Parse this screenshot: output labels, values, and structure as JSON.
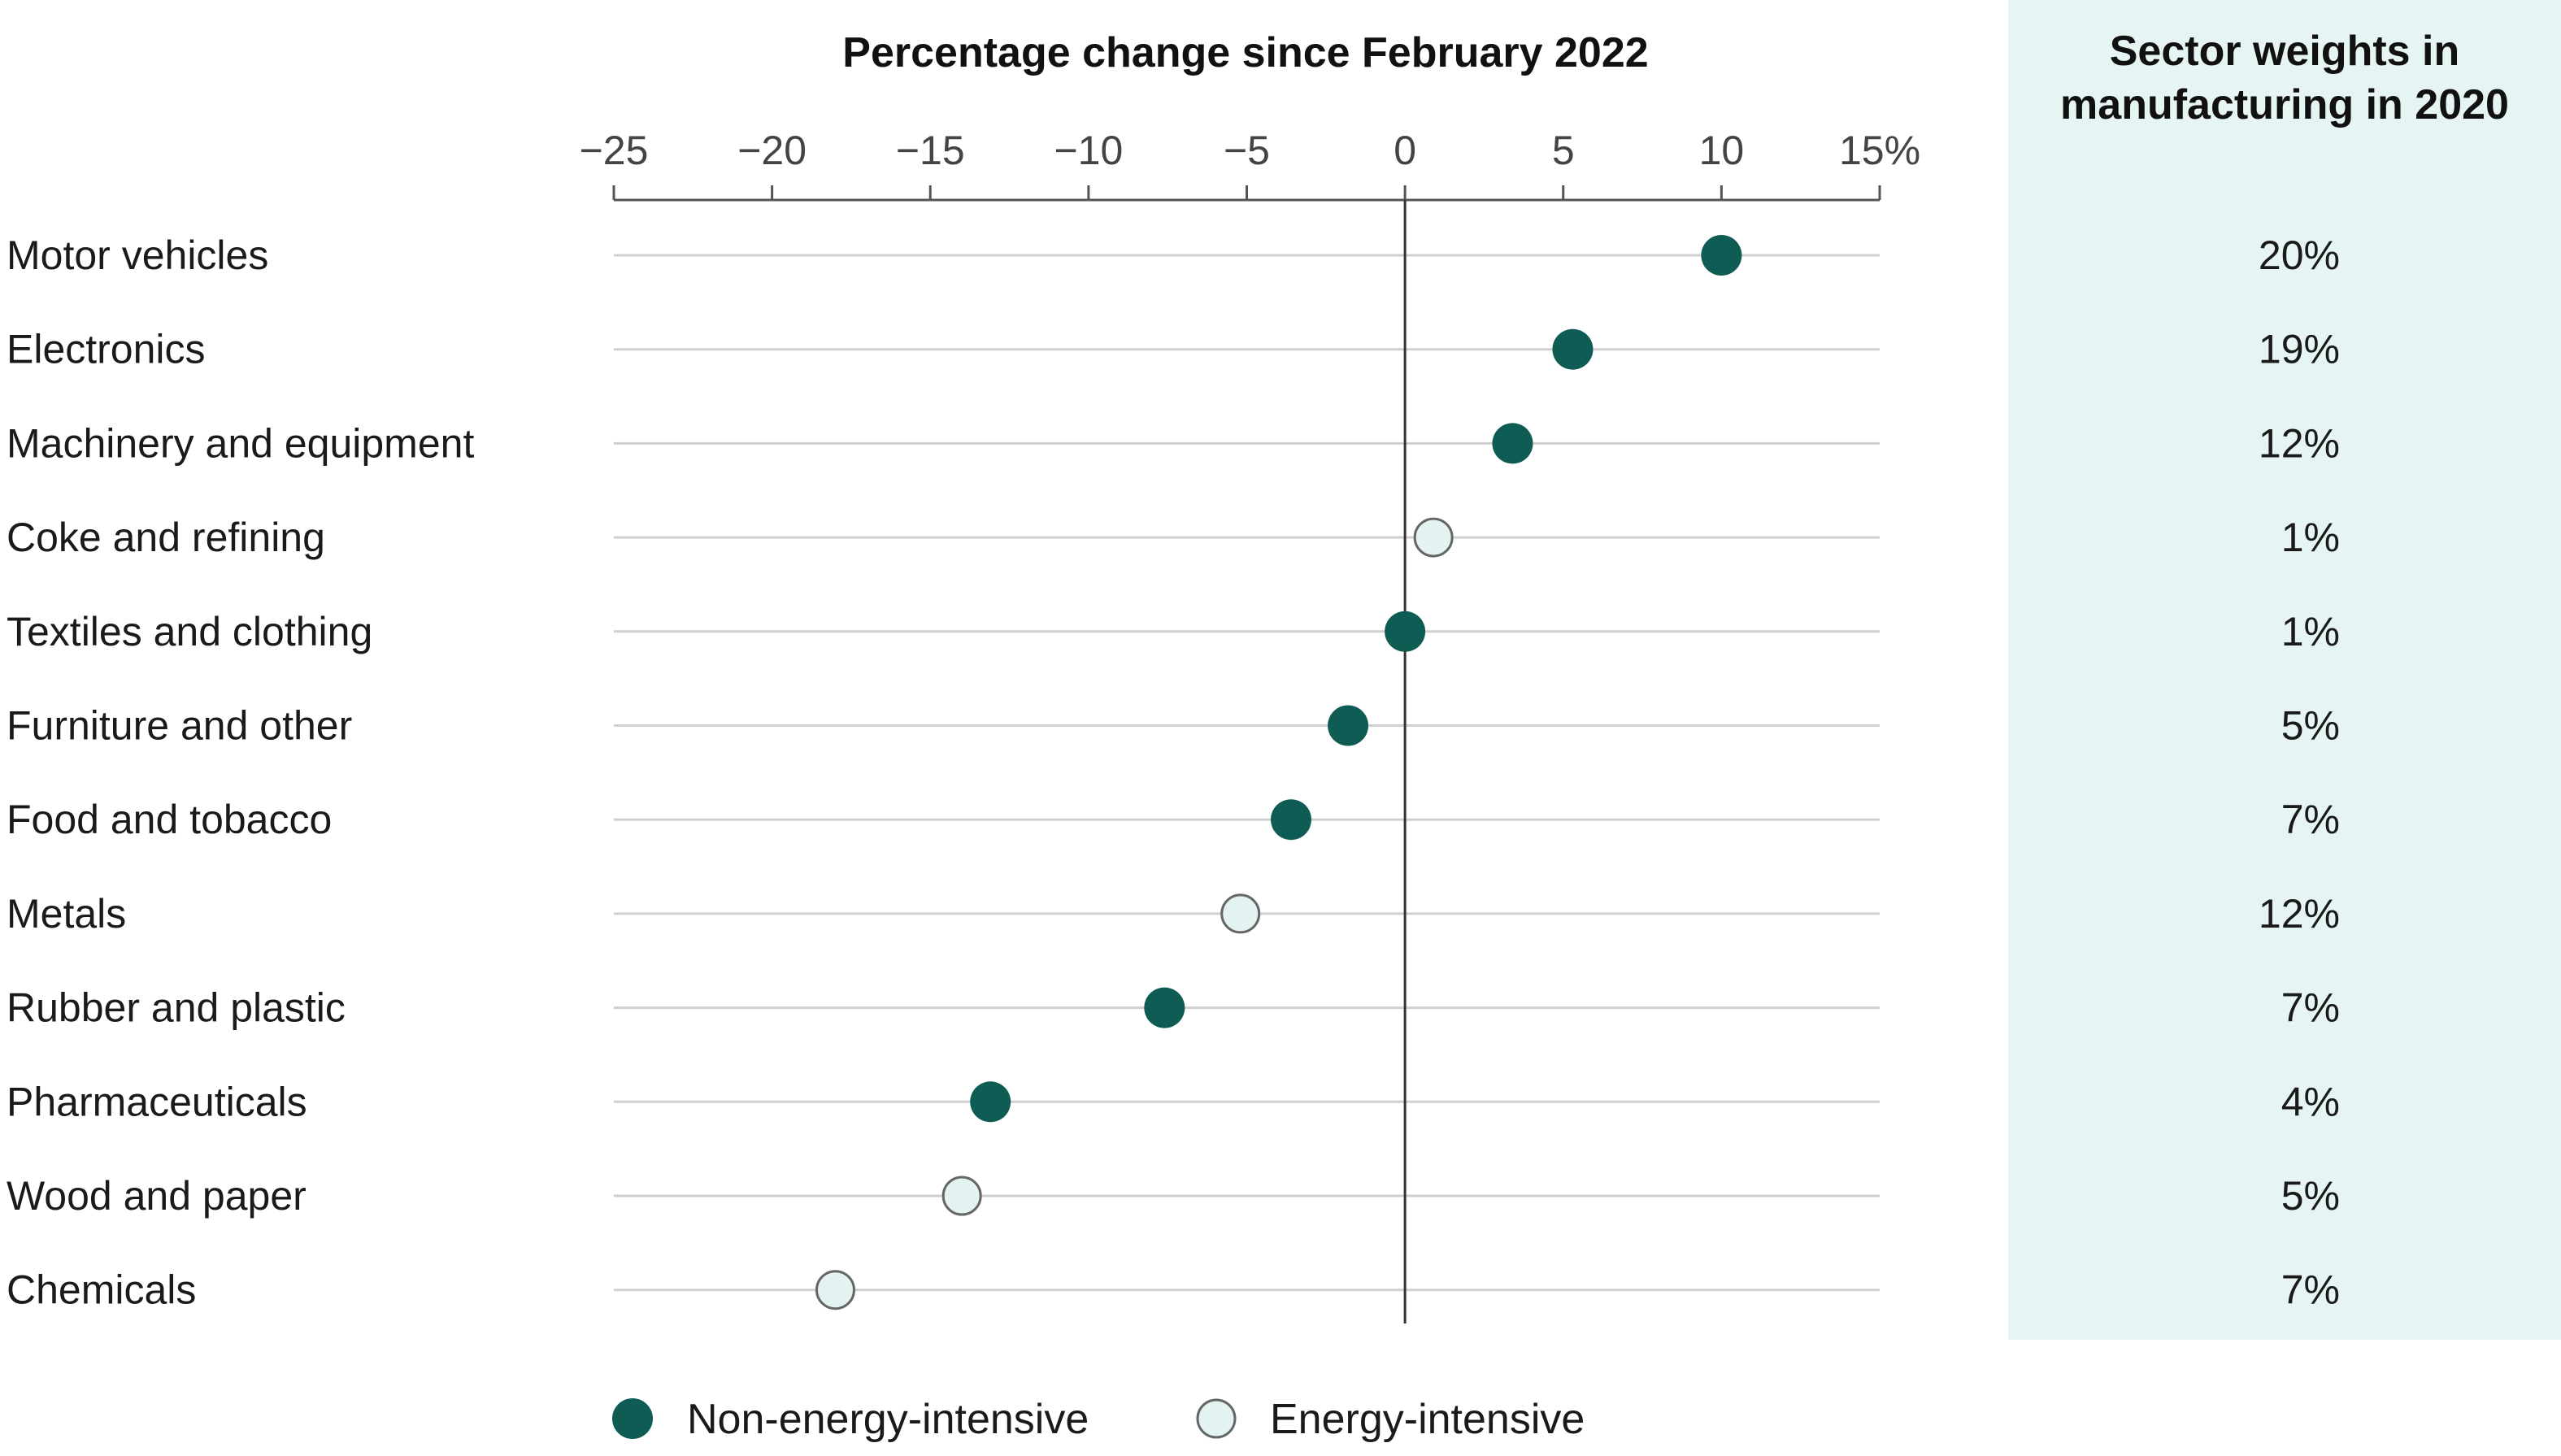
{
  "chart_data": {
    "type": "scatter",
    "title": "Percentage change since February 2022",
    "xlim": [
      -25,
      15
    ],
    "x_ticks": [
      "−25",
      "−20",
      "−15",
      "−10",
      "−5",
      "0",
      "5",
      "10",
      "15%"
    ],
    "x_tick_values": [
      -25,
      -20,
      -15,
      -10,
      -5,
      0,
      5,
      10,
      15
    ],
    "categories": [
      "Motor vehicles",
      "Electronics",
      "Machinery and equipment",
      "Coke and refining",
      "Textiles and clothing",
      "Furniture and other",
      "Food and tobacco",
      "Metals",
      "Rubber and plastic",
      "Pharmaceuticals",
      "Wood and paper",
      "Chemicals"
    ],
    "values": [
      10.0,
      5.3,
      3.4,
      0.9,
      0.0,
      -1.8,
      -3.6,
      -5.2,
      -7.6,
      -13.1,
      -14.0,
      -18.0
    ],
    "groups": [
      "Non-energy-intensive",
      "Non-energy-intensive",
      "Non-energy-intensive",
      "Energy-intensive",
      "Non-energy-intensive",
      "Non-energy-intensive",
      "Non-energy-intensive",
      "Energy-intensive",
      "Non-energy-intensive",
      "Non-energy-intensive",
      "Energy-intensive",
      "Energy-intensive"
    ],
    "legend": [
      {
        "name": "Non-energy-intensive",
        "color": "#0f5c55"
      },
      {
        "name": "Energy-intensive",
        "color": "#e3f3f1"
      }
    ],
    "legend_position": "bottom",
    "grid": true,
    "side_table": {
      "title_line1": "Sector weights in",
      "title_line2": "manufacturing in 2020",
      "values": [
        "20%",
        "19%",
        "12%",
        "1%",
        "1%",
        "5%",
        "7%",
        "12%",
        "7%",
        "4%",
        "5%",
        "7%"
      ]
    }
  },
  "colors": {
    "filled_marker": "#0f5c55",
    "open_marker_fill": "#e3f3f1",
    "open_marker_stroke": "#666666",
    "panel_background": "#e6f4f3",
    "gridline": "#cfcfcf",
    "axis": "#555555"
  }
}
